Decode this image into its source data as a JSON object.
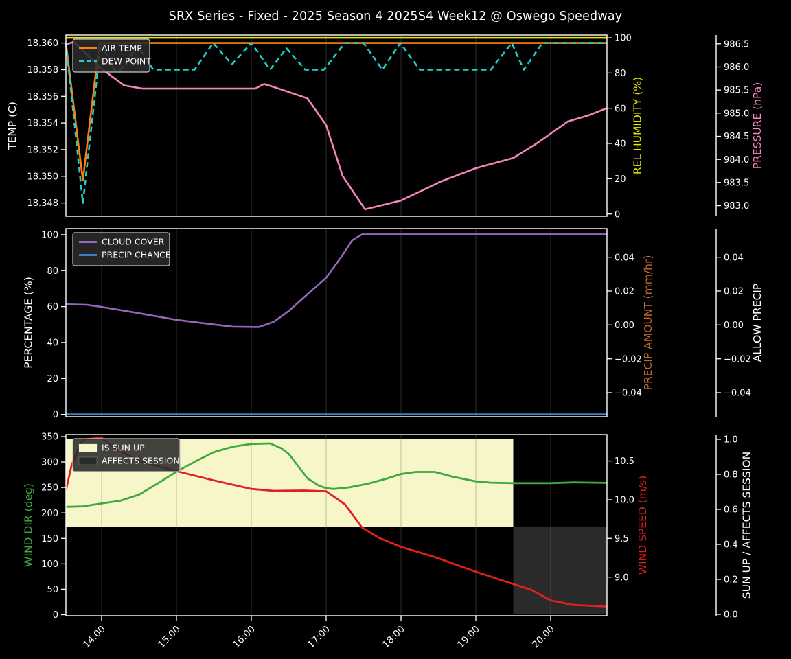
{
  "title": "SRX Series - Fixed - 2025 Season 4 2025S4 Week12 @ Oswego Speedway",
  "colors": {
    "background": "#000000",
    "text": "#ffffff",
    "grid": "#6e6e6e",
    "spine": "#ffffff",
    "air_temp": "#ff7f0e",
    "dew_point": "#1fd1c7",
    "humidity": "#e6e600",
    "pressure": "#f585bd",
    "cloud_cover": "#9467bd",
    "precip_chance": "#3b82c4",
    "precip_amount": "#c3692f",
    "wind_dir": "#3fa83f",
    "wind_speed": "#e02020",
    "sun_fill": "#f6f6c8",
    "session_fill": "#2a2a2a",
    "legend_bg": "rgba(42,42,42,0.88)",
    "legend_border": "#c8c8c8"
  },
  "x_axis": {
    "start": 13.523,
    "end": 20.752,
    "tick_hours": [
      14,
      15,
      16,
      17,
      18,
      19,
      20
    ],
    "tick_labels": [
      "14:00",
      "15:00",
      "16:00",
      "17:00",
      "18:00",
      "19:00",
      "20:00"
    ]
  },
  "chart_data": [
    {
      "id": "temp",
      "type": "line",
      "axes": {
        "left": {
          "label": "TEMP (C)",
          "color": "#ffffff",
          "min": 18.347,
          "max": 18.3606,
          "ticks": [
            {
              "v": 18.348,
              "t": "18.348"
            },
            {
              "v": 18.35,
              "t": "18.350"
            },
            {
              "v": 18.352,
              "t": "18.352"
            },
            {
              "v": 18.354,
              "t": "18.354"
            },
            {
              "v": 18.356,
              "t": "18.356"
            },
            {
              "v": 18.358,
              "t": "18.358"
            },
            {
              "v": 18.36,
              "t": "18.360"
            }
          ]
        },
        "right1": {
          "label": "REL HUMIDITY (%)",
          "color": "#e6e600",
          "min": -1.3,
          "max": 101.6,
          "ticks": [
            {
              "v": 0,
              "t": "0"
            },
            {
              "v": 20,
              "t": "20"
            },
            {
              "v": 40,
              "t": "40"
            },
            {
              "v": 60,
              "t": "60"
            },
            {
              "v": 80,
              "t": "80"
            },
            {
              "v": 100,
              "t": "100"
            }
          ]
        },
        "right2": {
          "label": "PRESSURE (hPa)",
          "color": "#f585bd",
          "min": 982.77,
          "max": 986.69,
          "ticks": [
            {
              "v": 983.0,
              "t": "983.0"
            },
            {
              "v": 983.5,
              "t": "983.5"
            },
            {
              "v": 984.0,
              "t": "984.0"
            },
            {
              "v": 984.5,
              "t": "984.5"
            },
            {
              "v": 985.0,
              "t": "985.0"
            },
            {
              "v": 985.5,
              "t": "985.5"
            },
            {
              "v": 986.0,
              "t": "986.0"
            },
            {
              "v": 986.5,
              "t": "986.5"
            }
          ]
        }
      },
      "series": [
        {
          "name": "REL HUMIDITY",
          "axis": "right1",
          "color": "#e6e600",
          "width": 2.5,
          "points": [
            [
              13.523,
              100
            ],
            [
              20.752,
              100
            ]
          ]
        },
        {
          "name": "PRESSURE",
          "axis": "right2",
          "color": "#f585bd",
          "width": 2.6,
          "points": [
            [
              13.523,
              986.49
            ],
            [
              13.63,
              986.54
            ],
            [
              14.0,
              985.96
            ],
            [
              14.3,
              985.6
            ],
            [
              14.55,
              985.53
            ],
            [
              16.05,
              985.53
            ],
            [
              16.17,
              985.63
            ],
            [
              16.33,
              985.55
            ],
            [
              16.75,
              985.32
            ],
            [
              17.0,
              984.74
            ],
            [
              17.22,
              983.64
            ],
            [
              17.52,
              982.92
            ],
            [
              18.0,
              983.11
            ],
            [
              18.53,
              983.52
            ],
            [
              19.0,
              983.81
            ],
            [
              19.5,
              984.03
            ],
            [
              19.8,
              984.33
            ],
            [
              20.23,
              984.82
            ],
            [
              20.5,
              984.95
            ],
            [
              20.752,
              985.11
            ]
          ]
        },
        {
          "name": "AIR TEMP",
          "axis": "left",
          "color": "#ff7f0e",
          "width": 2.6,
          "points": [
            [
              13.523,
              18.36
            ],
            [
              13.75,
              18.3497
            ],
            [
              13.97,
              18.36
            ],
            [
              20.752,
              18.36
            ]
          ]
        },
        {
          "name": "DEW POINT",
          "axis": "left",
          "color": "#1fd1c7",
          "width": 2.6,
          "dash": true,
          "points": [
            [
              13.523,
              18.36
            ],
            [
              13.75,
              18.348
            ],
            [
              13.99,
              18.36
            ],
            [
              14.17,
              18.358
            ],
            [
              14.26,
              18.358
            ],
            [
              14.48,
              18.3598
            ],
            [
              14.69,
              18.358
            ],
            [
              15.24,
              18.358
            ],
            [
              15.49,
              18.36
            ],
            [
              15.74,
              18.3584
            ],
            [
              16.0,
              18.36
            ],
            [
              16.25,
              18.358
            ],
            [
              16.47,
              18.3596
            ],
            [
              16.72,
              18.358
            ],
            [
              16.97,
              18.358
            ],
            [
              17.25,
              18.36
            ],
            [
              17.5,
              18.36
            ],
            [
              17.75,
              18.358
            ],
            [
              17.99,
              18.36
            ],
            [
              18.25,
              18.358
            ],
            [
              19.2,
              18.358
            ],
            [
              19.48,
              18.36
            ],
            [
              19.64,
              18.358
            ],
            [
              19.89,
              18.36
            ],
            [
              20.752,
              18.36
            ]
          ]
        }
      ],
      "legend": {
        "items": [
          {
            "label": "AIR TEMP",
            "type": "line",
            "color": "#ff7f0e"
          },
          {
            "label": "DEW POINT",
            "type": "line",
            "color": "#1fd1c7",
            "dash": true
          }
        ]
      }
    },
    {
      "id": "pct",
      "type": "line",
      "axes": {
        "left": {
          "label": "PERCENTAGE (%)",
          "color": "#ffffff",
          "min": -1.3,
          "max": 103.4,
          "ticks": [
            {
              "v": 0,
              "t": "0"
            },
            {
              "v": 20,
              "t": "20"
            },
            {
              "v": 40,
              "t": "40"
            },
            {
              "v": 60,
              "t": "60"
            },
            {
              "v": 80,
              "t": "80"
            },
            {
              "v": 100,
              "t": "100"
            }
          ]
        },
        "right1": {
          "label": "PRECIP AMOUNT (mm/hr)",
          "color": "#c3692f",
          "min": -0.0542,
          "max": 0.0569,
          "ticks": [
            {
              "v": -0.04,
              "t": "−0.04"
            },
            {
              "v": -0.02,
              "t": "−0.02"
            },
            {
              "v": 0.0,
              "t": "0.00"
            },
            {
              "v": 0.02,
              "t": "0.02"
            },
            {
              "v": 0.04,
              "t": "0.04"
            }
          ]
        },
        "right2": {
          "label": "ALLOW PRECIP",
          "color": "#ffffff",
          "min": -0.0542,
          "max": 0.0569,
          "ticks": [
            {
              "v": -0.04,
              "t": "−0.04"
            },
            {
              "v": -0.02,
              "t": "−0.02"
            },
            {
              "v": 0.0,
              "t": "0.00"
            },
            {
              "v": 0.02,
              "t": "0.02"
            },
            {
              "v": 0.04,
              "t": "0.04"
            }
          ]
        }
      },
      "series": [
        {
          "name": "CLOUD COVER",
          "axis": "left",
          "color": "#9467bd",
          "width": 2.6,
          "points": [
            [
              13.523,
              61.3
            ],
            [
              13.8,
              61.0
            ],
            [
              14.0,
              59.8
            ],
            [
              14.5,
              56.3
            ],
            [
              15.0,
              52.6
            ],
            [
              15.5,
              50.0
            ],
            [
              15.75,
              48.8
            ],
            [
              16.1,
              48.6
            ],
            [
              16.3,
              51.5
            ],
            [
              16.5,
              57.5
            ],
            [
              16.7,
              65.0
            ],
            [
              17.0,
              76.0
            ],
            [
              17.2,
              87.5
            ],
            [
              17.35,
              97.0
            ],
            [
              17.48,
              100.2
            ],
            [
              20.752,
              100.2
            ]
          ]
        },
        {
          "name": "PRECIP CHANCE",
          "axis": "left",
          "color": "#3b82c4",
          "width": 2.6,
          "points": [
            [
              13.523,
              0
            ],
            [
              20.752,
              0
            ]
          ]
        }
      ],
      "legend": {
        "items": [
          {
            "label": "CLOUD COVER",
            "type": "line",
            "color": "#9467bd"
          },
          {
            "label": "PRECIP CHANCE",
            "type": "line",
            "color": "#3b82c4"
          }
        ]
      }
    },
    {
      "id": "wind",
      "type": "line",
      "axes": {
        "left": {
          "label": "WIND DIR (deg)",
          "color": "#3fa83f",
          "min": -2.0,
          "max": 354.0,
          "ticks": [
            {
              "v": 0,
              "t": "0"
            },
            {
              "v": 50,
              "t": "50"
            },
            {
              "v": 100,
              "t": "100"
            },
            {
              "v": 150,
              "t": "150"
            },
            {
              "v": 200,
              "t": "200"
            },
            {
              "v": 250,
              "t": "250"
            },
            {
              "v": 300,
              "t": "300"
            },
            {
              "v": 350,
              "t": "350"
            }
          ]
        },
        "right1": {
          "label": "WIND SPEED (m/s)",
          "color": "#e02020",
          "min": 8.5,
          "max": 10.843,
          "ticks": [
            {
              "v": 9.0,
              "t": "9.0"
            },
            {
              "v": 9.5,
              "t": "9.5"
            },
            {
              "v": 10.0,
              "t": "10.0"
            },
            {
              "v": 10.5,
              "t": "10.5"
            }
          ]
        },
        "right2": {
          "label": "SUN UP / AFFECTS SESSION",
          "color": "#ffffff",
          "min": -0.008,
          "max": 1.0275,
          "ticks": [
            {
              "v": 0.0,
              "t": "0.0"
            },
            {
              "v": 0.2,
              "t": "0.2"
            },
            {
              "v": 0.4,
              "t": "0.4"
            },
            {
              "v": 0.6,
              "t": "0.6"
            },
            {
              "v": 0.8,
              "t": "0.8"
            },
            {
              "v": 1.0,
              "t": "1.0"
            }
          ]
        }
      },
      "fills": [
        {
          "name": "is-sun-up-region",
          "axis": "right2",
          "color": "#f6f6c8",
          "t0": 13.523,
          "t1": 19.5,
          "v0": 0.5,
          "v1": 1.0
        },
        {
          "name": "affects-session-region",
          "axis": "right2",
          "color": "#2a2a2a",
          "t0": 19.5,
          "t1": 20.752,
          "v0": 0.0,
          "v1": 0.5
        }
      ],
      "series": [
        {
          "name": "WIND DIR",
          "axis": "left",
          "color": "#3fa83f",
          "width": 2.8,
          "points": [
            [
              13.523,
              212
            ],
            [
              13.75,
              213
            ],
            [
              14.0,
              218.6
            ],
            [
              14.25,
              224
            ],
            [
              14.5,
              236
            ],
            [
              14.75,
              258
            ],
            [
              15.0,
              281
            ],
            [
              15.25,
              301
            ],
            [
              15.5,
              319.5
            ],
            [
              15.75,
              330
            ],
            [
              16.0,
              335.5
            ],
            [
              16.25,
              336.5
            ],
            [
              16.4,
              327
            ],
            [
              16.5,
              316
            ],
            [
              16.75,
              268
            ],
            [
              16.9,
              254
            ],
            [
              17.0,
              248.6
            ],
            [
              17.1,
              247
            ],
            [
              17.3,
              250
            ],
            [
              17.55,
              257
            ],
            [
              17.8,
              267
            ],
            [
              18.0,
              276.5
            ],
            [
              18.2,
              280.5
            ],
            [
              18.45,
              280.5
            ],
            [
              18.7,
              271
            ],
            [
              19.0,
              262
            ],
            [
              19.2,
              259.5
            ],
            [
              19.5,
              258.5
            ],
            [
              20.0,
              258.5
            ],
            [
              20.3,
              260
            ],
            [
              20.752,
              259
            ]
          ]
        },
        {
          "name": "WIND SPEED",
          "axis": "right1",
          "color": "#e02020",
          "width": 2.8,
          "points": [
            [
              13.523,
              10.12
            ],
            [
              13.6,
              10.45
            ],
            [
              13.75,
              10.78
            ],
            [
              14.0,
              10.8
            ],
            [
              14.15,
              10.68
            ],
            [
              14.5,
              10.5
            ],
            [
              15.0,
              10.37
            ],
            [
              15.5,
              10.25
            ],
            [
              16.0,
              10.14
            ],
            [
              16.3,
              10.115
            ],
            [
              16.7,
              10.12
            ],
            [
              17.0,
              10.11
            ],
            [
              17.25,
              9.94
            ],
            [
              17.48,
              9.64
            ],
            [
              17.7,
              9.51
            ],
            [
              18.0,
              9.39
            ],
            [
              18.45,
              9.26
            ],
            [
              19.0,
              9.07
            ],
            [
              19.5,
              8.91
            ],
            [
              19.73,
              8.84
            ],
            [
              20.0,
              8.7
            ],
            [
              20.3,
              8.64
            ],
            [
              20.752,
              8.62
            ]
          ]
        }
      ],
      "legend": {
        "items": [
          {
            "label": "IS SUN UP",
            "type": "patch",
            "color": "#f6f6c8"
          },
          {
            "label": "AFFECTS SESSION",
            "type": "patch",
            "color": "#2a2a2a"
          }
        ]
      }
    }
  ]
}
